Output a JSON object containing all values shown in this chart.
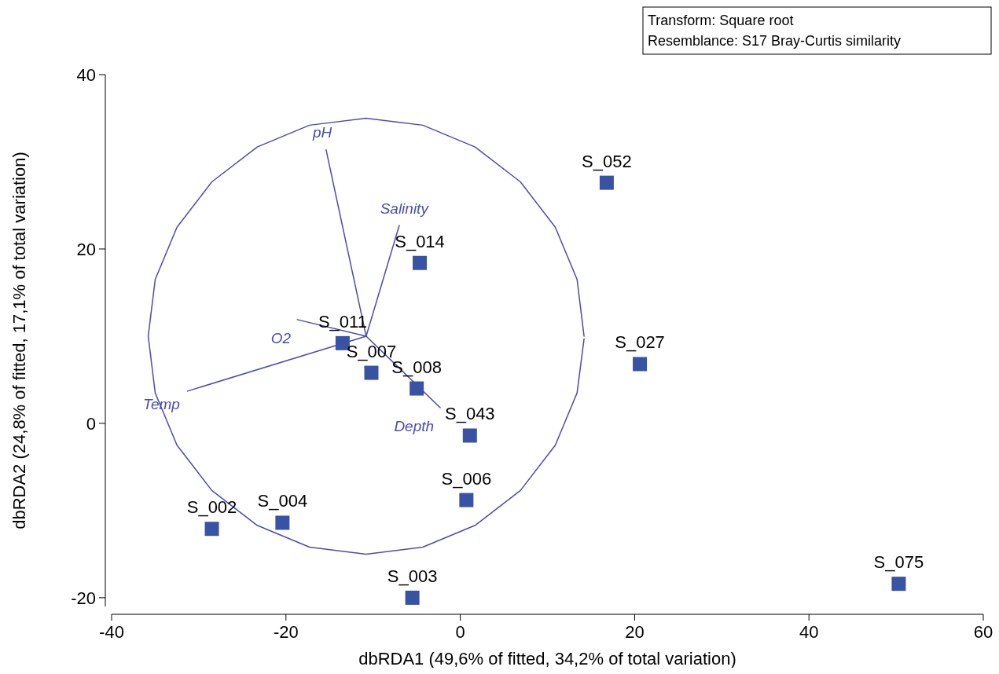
{
  "chart_data": {
    "type": "scatter",
    "xlabel": "dbRDA1 (49,6% of fitted, 34,2% of total variation)",
    "ylabel": "dbRDA2 (24,8% of fitted, 17,1% of total variation)",
    "xlim": [
      -40,
      60
    ],
    "ylim": [
      -21,
      40
    ],
    "xticks": [
      -40,
      -20,
      0,
      20,
      40,
      60
    ],
    "yticks": [
      -20,
      0,
      20,
      40
    ],
    "grid": false,
    "series": [
      {
        "type": "line",
        "marker": "none",
        "color": "#4b4bb4",
        "x": [
          14.2,
          13.4,
          10.9,
          6.9,
          1.7,
          -4.3,
          -10.8,
          -17.3,
          -23.3,
          -28.5,
          -32.5,
          -35.0,
          -35.8,
          -35.0,
          -32.5,
          -28.5,
          -23.3,
          -17.3,
          -10.8,
          -4.3,
          1.7,
          6.9,
          10.9,
          13.4,
          14.2
        ],
        "values": [
          10,
          16.5,
          22.5,
          27.7,
          31.7,
          34.2,
          35,
          34.2,
          31.7,
          27.7,
          22.5,
          16.5,
          10,
          3.5,
          -2.5,
          -7.7,
          -11.7,
          -14.2,
          -15,
          -14.2,
          -11.7,
          -7.7,
          -2.5,
          3.5,
          9.7
        ]
      },
      {
        "type": "line",
        "marker": "none",
        "name": "pH",
        "color": "#4b4bb4",
        "x": [
          -10.8,
          -15.4
        ],
        "values": [
          10,
          31.4
        ]
      },
      {
        "type": "line",
        "marker": "none",
        "name": "Salinity",
        "color": "#4b4bb4",
        "x": [
          -10.8,
          -7.0
        ],
        "values": [
          10,
          22.7
        ]
      },
      {
        "type": "line",
        "marker": "none",
        "name": "O2",
        "color": "#4b4bb4",
        "x": [
          -10.8,
          -18.7
        ],
        "values": [
          10,
          11.9
        ]
      },
      {
        "type": "line",
        "marker": "none",
        "name": "Temp",
        "color": "#4b4bb4",
        "x": [
          -10.8,
          -31.3
        ],
        "values": [
          10,
          3.7
        ]
      },
      {
        "type": "line",
        "marker": "none",
        "name": "Depth",
        "color": "#4b4bb4",
        "x": [
          -10.8,
          -2.3
        ],
        "values": [
          10,
          1.8
        ]
      },
      {
        "marker": "square",
        "color": "#3953a4",
        "x": [
          16.8,
          -4.65,
          -13.5,
          -10.2,
          -5.0,
          1.1,
          20.6,
          0.7,
          -20.4,
          -28.5,
          -5.5,
          50.3
        ],
        "values": [
          27.6,
          18.4,
          9.2,
          5.8,
          4.0,
          -1.4,
          6.8,
          -8.8,
          -11.4,
          -12.1,
          -20,
          -18.4
        ]
      }
    ],
    "annotations": [
      {
        "text": "S_052",
        "x": 16.8,
        "y": 27.6
      },
      {
        "text": "S_014",
        "x": -4.65,
        "y": 18.4
      },
      {
        "text": "S_011",
        "x": -13.5,
        "y": 9.2
      },
      {
        "text": "S_007",
        "x": -10.2,
        "y": 5.8
      },
      {
        "text": "S_008",
        "x": -5.0,
        "y": 4.0
      },
      {
        "text": "S_043",
        "x": 1.1,
        "y": -1.4
      },
      {
        "text": "S_027",
        "x": 20.6,
        "y": 6.8
      },
      {
        "text": "S_006",
        "x": 0.7,
        "y": -8.8
      },
      {
        "text": "S_004",
        "x": -20.4,
        "y": -11.4
      },
      {
        "text": "S_002",
        "x": -28.5,
        "y": -12.1
      },
      {
        "text": "S_003",
        "x": -5.5,
        "y": -20
      },
      {
        "text": "S_075",
        "x": 50.3,
        "y": -18.4
      },
      "Transform: Square root",
      "Resemblance: S17 Bray-Curtis similarity"
    ]
  }
}
